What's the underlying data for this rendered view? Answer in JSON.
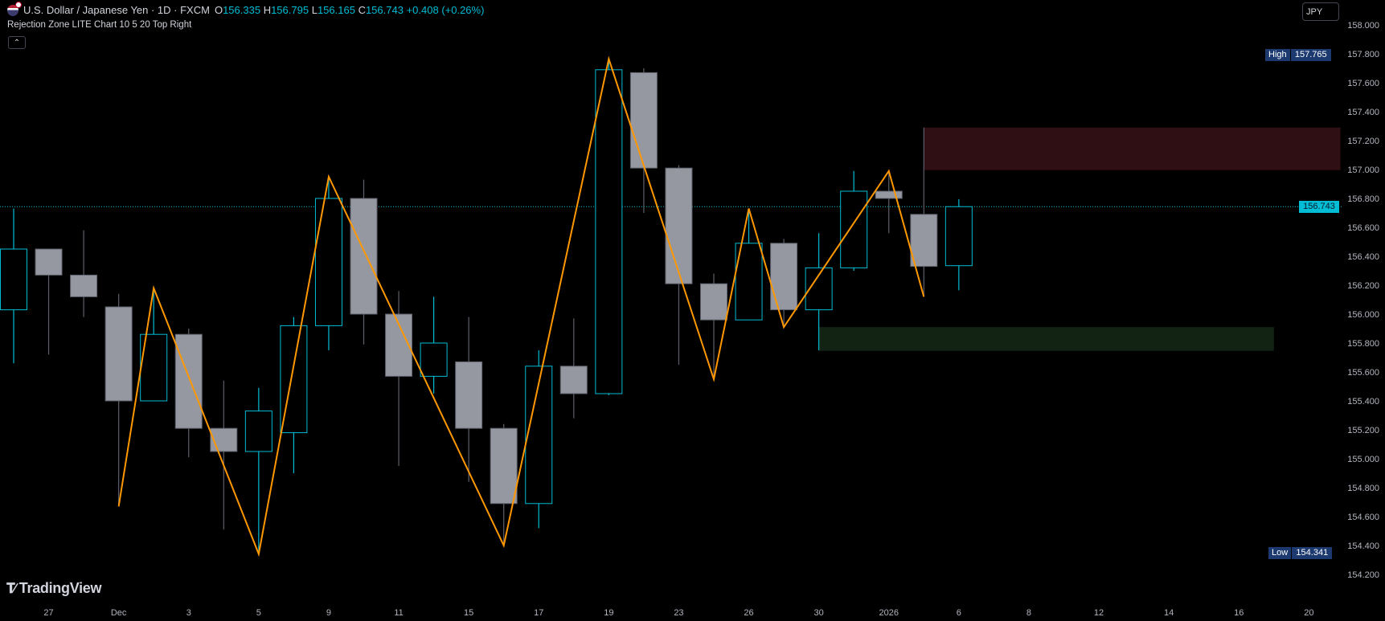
{
  "header": {
    "symbol_title": "U.S. Dollar / Japanese Yen · 1D · FXCM",
    "open_label": "O",
    "open": "156.335",
    "high_label": "H",
    "high": "156.795",
    "low_label": "L",
    "low": "156.165",
    "close_label": "C",
    "close": "156.743",
    "change": "+0.408 (+0.26%)",
    "indicator": "Rejection Zone LITE Chart 10 5 20 Top Right",
    "collapse_icon": "chevron-up-icon"
  },
  "currency_button": "JPY",
  "branding": "TradingView",
  "price_axis": {
    "ticks": [
      "158.000",
      "157.800",
      "157.600",
      "157.400",
      "157.200",
      "157.000",
      "156.800",
      "156.600",
      "156.400",
      "156.200",
      "156.000",
      "155.800",
      "155.600",
      "155.400",
      "155.200",
      "155.000",
      "154.800",
      "154.600",
      "154.400",
      "154.200"
    ],
    "last_price": "156.743",
    "high_tag": {
      "label": "High",
      "value": "157.765"
    },
    "low_tag": {
      "label": "Low",
      "value": "154.341"
    }
  },
  "time_axis": {
    "ticks": [
      {
        "label": "27",
        "bar": 1
      },
      {
        "label": "Dec",
        "bar": 3
      },
      {
        "label": "3",
        "bar": 5
      },
      {
        "label": "5",
        "bar": 7
      },
      {
        "label": "9",
        "bar": 9
      },
      {
        "label": "11",
        "bar": 11
      },
      {
        "label": "15",
        "bar": 13
      },
      {
        "label": "17",
        "bar": 15
      },
      {
        "label": "19",
        "bar": 17
      },
      {
        "label": "23",
        "bar": 19
      },
      {
        "label": "26",
        "bar": 21
      },
      {
        "label": "30",
        "bar": 23
      },
      {
        "label": "2026",
        "bar": 25
      },
      {
        "label": "6",
        "bar": 27
      },
      {
        "label": "8",
        "bar": 29
      },
      {
        "label": "12",
        "bar": 31
      },
      {
        "label": "14",
        "bar": 33
      },
      {
        "label": "16",
        "bar": 35
      },
      {
        "label": "20",
        "bar": 37
      }
    ]
  },
  "colors": {
    "background": "#000000",
    "up_candle": "#00bcd4",
    "down_candle_fill": "#9598a1",
    "down_candle_border": "#5d606b",
    "zigzag": "#ff9800",
    "resistance_zone": "#300f14",
    "support_zone": "#122213",
    "axis_text": "#b2b5be",
    "last_price": "#00bcd4"
  },
  "chart_data": {
    "type": "candlestick",
    "columns": [
      "open",
      "high",
      "low",
      "close"
    ],
    "candles": [
      [
        156.03,
        156.73,
        155.66,
        156.45
      ],
      [
        156.45,
        156.45,
        155.72,
        156.27
      ],
      [
        156.27,
        156.58,
        155.98,
        156.12
      ],
      [
        156.05,
        156.14,
        154.67,
        155.4
      ],
      [
        155.4,
        156.18,
        155.4,
        155.86
      ],
      [
        155.86,
        155.9,
        155.01,
        155.21
      ],
      [
        155.21,
        155.54,
        154.51,
        155.05
      ],
      [
        155.05,
        155.49,
        154.341,
        155.33
      ],
      [
        155.18,
        155.98,
        154.9,
        155.92
      ],
      [
        155.92,
        156.95,
        155.75,
        156.8
      ],
      [
        156.8,
        156.93,
        155.79,
        156.0
      ],
      [
        156.0,
        156.16,
        154.95,
        155.57
      ],
      [
        155.57,
        156.12,
        155.45,
        155.8
      ],
      [
        155.67,
        155.98,
        154.84,
        155.21
      ],
      [
        155.21,
        155.24,
        154.4,
        154.69
      ],
      [
        154.69,
        155.75,
        154.52,
        155.64
      ],
      [
        155.64,
        155.97,
        155.28,
        155.45
      ],
      [
        155.45,
        157.765,
        155.44,
        157.69
      ],
      [
        157.67,
        157.7,
        156.7,
        157.01
      ],
      [
        157.01,
        157.03,
        155.65,
        156.21
      ],
      [
        156.21,
        156.28,
        155.55,
        155.96
      ],
      [
        155.96,
        156.73,
        155.96,
        156.49
      ],
      [
        156.49,
        156.52,
        155.91,
        156.03
      ],
      [
        156.03,
        156.56,
        155.75,
        156.32
      ],
      [
        156.32,
        156.99,
        156.3,
        156.85
      ],
      [
        156.85,
        156.99,
        156.56,
        156.8
      ],
      [
        156.69,
        157.29,
        156.12,
        156.33
      ],
      [
        156.335,
        156.795,
        156.165,
        156.743
      ]
    ],
    "zigzag": [
      [
        3,
        154.67
      ],
      [
        4,
        156.18
      ],
      [
        7,
        154.341
      ],
      [
        9,
        156.95
      ],
      [
        14,
        154.4
      ],
      [
        17,
        157.765
      ],
      [
        20,
        155.55
      ],
      [
        21,
        156.73
      ],
      [
        22,
        155.91
      ],
      [
        25,
        156.99
      ],
      [
        26,
        156.12
      ]
    ],
    "zones": [
      {
        "type": "resistance",
        "from_bar": 26,
        "to_bar": 37.9,
        "top": 157.29,
        "bottom": 156.996
      },
      {
        "type": "support",
        "from_bar": 23,
        "to_bar": 36,
        "top": 155.91,
        "bottom": 155.746
      }
    ],
    "ylim": [
      154.1,
      158.1
    ]
  }
}
